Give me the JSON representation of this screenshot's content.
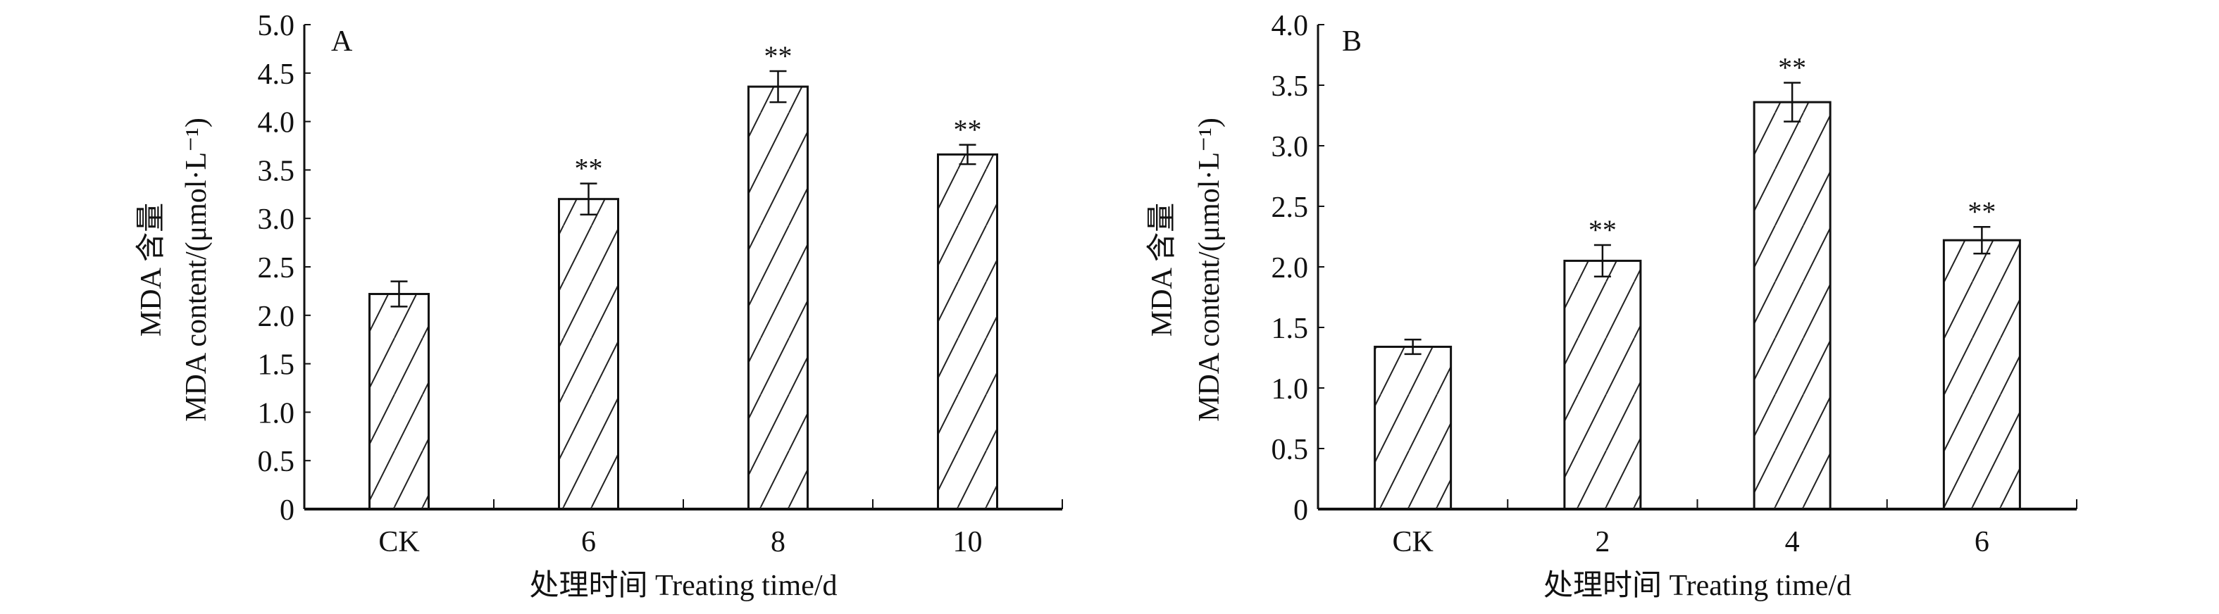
{
  "chart_data": [
    {
      "type": "bar",
      "panel_label": "A",
      "categories": [
        "CK",
        "6",
        "8",
        "10"
      ],
      "values": [
        2.22,
        3.2,
        4.36,
        3.66
      ],
      "errors": [
        0.13,
        0.16,
        0.16,
        0.1
      ],
      "significance": [
        "",
        "**",
        "**",
        "**"
      ],
      "xlabel": "处理时间 Treating time/d",
      "ylabel_cn": "MDA 含量",
      "ylabel_en": "MDA content/(μmol·L⁻¹)",
      "ylim": [
        0,
        5.0
      ],
      "yticks": [
        "0",
        "0.5",
        "1.0",
        "1.5",
        "2.0",
        "2.5",
        "3.0",
        "3.5",
        "4.0",
        "4.5",
        "5.0"
      ],
      "pattern": "diagonal-hatch",
      "grid": false
    },
    {
      "type": "bar",
      "panel_label": "B",
      "categories": [
        "CK",
        "2",
        "4",
        "6"
      ],
      "values": [
        1.34,
        2.05,
        3.36,
        2.22
      ],
      "errors": [
        0.06,
        0.13,
        0.16,
        0.11
      ],
      "significance": [
        "",
        "**",
        "**",
        "**"
      ],
      "xlabel": "处理时间 Treating time/d",
      "ylabel_cn": "MDA 含量",
      "ylabel_en": "MDA content/(μmol·L⁻¹)",
      "ylim": [
        0,
        4.0
      ],
      "yticks": [
        "0",
        "0.5",
        "1.0",
        "1.5",
        "2.0",
        "2.5",
        "3.0",
        "3.5",
        "4.0"
      ],
      "pattern": "diagonal-hatch",
      "grid": false
    }
  ]
}
